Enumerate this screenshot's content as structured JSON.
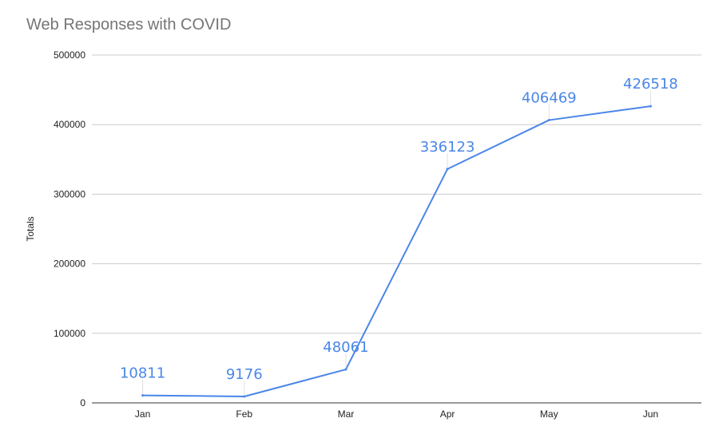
{
  "chart_data": {
    "type": "line",
    "title": "Web Responses with COVID",
    "xlabel": "",
    "ylabel": "Totals",
    "categories": [
      "Jan",
      "Feb",
      "Mar",
      "Apr",
      "May",
      "Jun"
    ],
    "series": [
      {
        "values": [
          10811,
          9176,
          48061,
          336123,
          406469,
          426518
        ]
      }
    ],
    "ylim": [
      0,
      500000
    ],
    "yticks": [
      0,
      100000,
      200000,
      300000,
      400000,
      500000
    ],
    "grid": true,
    "legend": "none",
    "data_labels": true,
    "colors": {
      "line": "#4a86e8",
      "label": "#4a86e8",
      "grid": "#cccccc",
      "axis": "#333333",
      "title": "#757575"
    }
  }
}
